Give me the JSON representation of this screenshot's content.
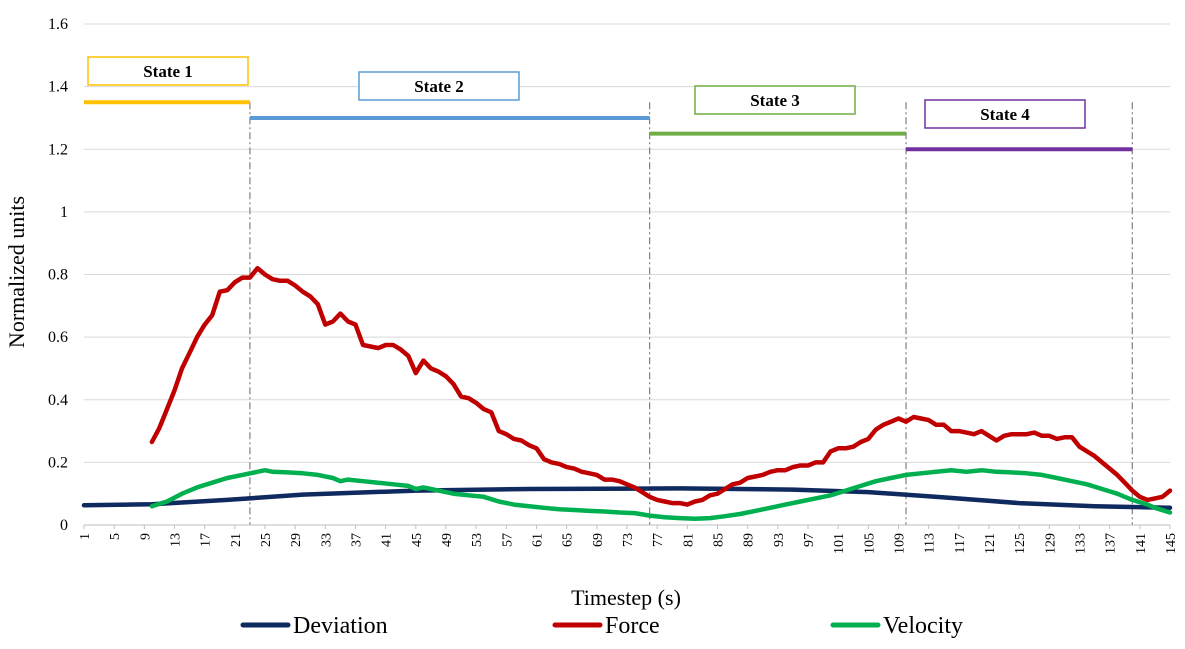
{
  "chart_data": {
    "type": "line",
    "xlabel": "Timestep (s)",
    "ylabel": "Normalized units",
    "ylim": [
      0,
      1.6
    ],
    "yticks": [
      "0",
      "0.2",
      "0.4",
      "0.6",
      "0.8",
      "1",
      "1.2",
      "1.4",
      "1.6"
    ],
    "xlim": [
      1,
      145
    ],
    "xticks": [
      1,
      5,
      9,
      13,
      17,
      21,
      25,
      29,
      33,
      37,
      41,
      45,
      49,
      53,
      57,
      61,
      65,
      69,
      73,
      77,
      81,
      85,
      89,
      93,
      97,
      101,
      105,
      109,
      113,
      117,
      121,
      125,
      129,
      133,
      137,
      141,
      145
    ],
    "grid": "horizontal",
    "legend_position": "bottom",
    "series": [
      {
        "name": "Deviation",
        "color": "#0f2a5e",
        "x": [
          1,
          10,
          20,
          30,
          45,
          60,
          80,
          95,
          105,
          115,
          125,
          135,
          145
        ],
        "y": [
          0.063,
          0.066,
          0.08,
          0.097,
          0.11,
          0.115,
          0.117,
          0.113,
          0.105,
          0.088,
          0.07,
          0.06,
          0.055
        ]
      },
      {
        "name": "Force",
        "color": "#c00000",
        "x": [
          10,
          11,
          12,
          13,
          14,
          15,
          16,
          17,
          18,
          19,
          20,
          21,
          22,
          23,
          24,
          25,
          26,
          27,
          28,
          29,
          30,
          31,
          32,
          33,
          34,
          35,
          36,
          37,
          38,
          39,
          40,
          41,
          42,
          43,
          44,
          45,
          46,
          47,
          48,
          49,
          50,
          51,
          52,
          53,
          54,
          55,
          56,
          57,
          58,
          59,
          60,
          61,
          62,
          63,
          64,
          65,
          66,
          67,
          68,
          69,
          70,
          71,
          72,
          73,
          74,
          75,
          76,
          77,
          78,
          79,
          80,
          81,
          82,
          83,
          84,
          85,
          86,
          87,
          88,
          89,
          90,
          91,
          92,
          93,
          94,
          95,
          96,
          97,
          98,
          99,
          100,
          101,
          102,
          103,
          104,
          105,
          106,
          107,
          108,
          109,
          110,
          111,
          112,
          113,
          114,
          115,
          116,
          117,
          118,
          119,
          120,
          121,
          122,
          123,
          124,
          125,
          126,
          127,
          128,
          129,
          130,
          131,
          132,
          133,
          134,
          135,
          136,
          137,
          138,
          139,
          140,
          141,
          142,
          143,
          144,
          145
        ],
        "y": [
          0.265,
          0.31,
          0.37,
          0.43,
          0.5,
          0.55,
          0.6,
          0.64,
          0.67,
          0.745,
          0.75,
          0.775,
          0.79,
          0.79,
          0.82,
          0.8,
          0.785,
          0.78,
          0.78,
          0.765,
          0.745,
          0.73,
          0.705,
          0.64,
          0.65,
          0.675,
          0.65,
          0.64,
          0.575,
          0.57,
          0.565,
          0.575,
          0.575,
          0.56,
          0.54,
          0.485,
          0.525,
          0.5,
          0.49,
          0.475,
          0.45,
          0.41,
          0.405,
          0.39,
          0.37,
          0.36,
          0.3,
          0.29,
          0.275,
          0.27,
          0.255,
          0.245,
          0.21,
          0.2,
          0.195,
          0.185,
          0.18,
          0.17,
          0.165,
          0.16,
          0.145,
          0.145,
          0.14,
          0.13,
          0.12,
          0.105,
          0.09,
          0.08,
          0.075,
          0.07,
          0.07,
          0.065,
          0.075,
          0.08,
          0.095,
          0.1,
          0.115,
          0.13,
          0.135,
          0.15,
          0.155,
          0.16,
          0.17,
          0.175,
          0.175,
          0.185,
          0.19,
          0.19,
          0.2,
          0.2,
          0.235,
          0.245,
          0.245,
          0.25,
          0.265,
          0.275,
          0.305,
          0.32,
          0.33,
          0.34,
          0.33,
          0.345,
          0.34,
          0.335,
          0.32,
          0.32,
          0.3,
          0.3,
          0.295,
          0.29,
          0.3,
          0.285,
          0.27,
          0.285,
          0.29,
          0.29,
          0.29,
          0.295,
          0.285,
          0.285,
          0.275,
          0.28,
          0.28,
          0.25,
          0.235,
          0.22,
          0.2,
          0.18,
          0.16,
          0.135,
          0.11,
          0.09,
          0.08,
          0.085,
          0.09,
          0.11
        ]
      },
      {
        "name": "Velocity",
        "color": "#00b050",
        "x": [
          10,
          12,
          14,
          16,
          18,
          20,
          22,
          24,
          25,
          26,
          28,
          30,
          32,
          34,
          35,
          36,
          38,
          40,
          42,
          44,
          45,
          46,
          47,
          48,
          50,
          52,
          54,
          56,
          58,
          60,
          62,
          64,
          66,
          68,
          70,
          72,
          74,
          76,
          78,
          80,
          82,
          84,
          86,
          88,
          90,
          92,
          94,
          96,
          98,
          100,
          102,
          104,
          106,
          108,
          110,
          112,
          114,
          116,
          118,
          120,
          122,
          124,
          126,
          128,
          130,
          132,
          134,
          136,
          138,
          140,
          142,
          143,
          145
        ],
        "y": [
          0.06,
          0.075,
          0.1,
          0.12,
          0.135,
          0.15,
          0.16,
          0.17,
          0.175,
          0.17,
          0.168,
          0.165,
          0.16,
          0.15,
          0.14,
          0.145,
          0.14,
          0.135,
          0.13,
          0.125,
          0.115,
          0.12,
          0.115,
          0.11,
          0.1,
          0.095,
          0.09,
          0.075,
          0.065,
          0.06,
          0.055,
          0.05,
          0.048,
          0.045,
          0.043,
          0.04,
          0.038,
          0.03,
          0.025,
          0.022,
          0.02,
          0.022,
          0.028,
          0.035,
          0.045,
          0.055,
          0.065,
          0.075,
          0.085,
          0.095,
          0.11,
          0.125,
          0.14,
          0.15,
          0.16,
          0.165,
          0.17,
          0.175,
          0.17,
          0.175,
          0.17,
          0.168,
          0.165,
          0.16,
          0.15,
          0.14,
          0.13,
          0.115,
          0.1,
          0.08,
          0.065,
          0.055,
          0.04
        ]
      }
    ],
    "states": [
      {
        "label": "State 1",
        "color": "#ffc000",
        "x_start": 1,
        "x_end": 23,
        "y": 1.35
      },
      {
        "label": "State 2",
        "color": "#5b9bd5",
        "x_start": 23,
        "x_end": 76,
        "y": 1.3
      },
      {
        "label": "State 3",
        "color": "#70ad47",
        "x_start": 76,
        "x_end": 110,
        "y": 1.25
      },
      {
        "label": "State 4",
        "color": "#7030a0",
        "x_start": 110,
        "x_end": 140,
        "y": 1.2
      }
    ],
    "boundaries": [
      23,
      76,
      110,
      140
    ]
  }
}
